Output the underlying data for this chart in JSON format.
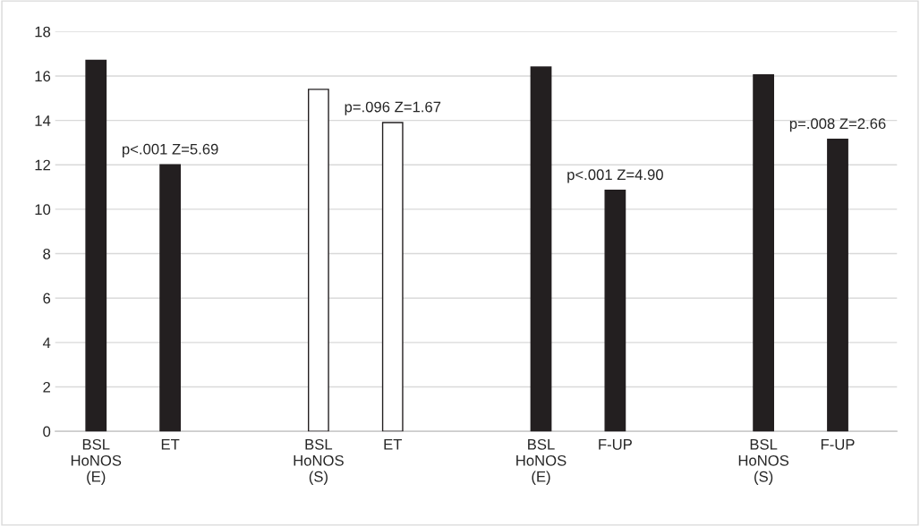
{
  "chart_data": {
    "type": "bar",
    "categories": [
      "BSL\nHoNOS\n(E)",
      "ET",
      null,
      "BSL\nHoNOS\n(S)",
      "ET",
      null,
      "BSL\nHoNOS\n(E)",
      "F-UP",
      null,
      "BSL\nHoNOS\n(S)",
      "F-UP"
    ],
    "values": [
      16.7,
      12.0,
      null,
      15.4,
      13.9,
      null,
      16.4,
      10.85,
      null,
      16.05,
      13.15
    ],
    "colors": [
      "#231f20",
      "#231f20",
      null,
      "#ffffff",
      "#ffffff",
      null,
      "#231f20",
      "#231f20",
      null,
      "#231f20",
      "#231f20"
    ],
    "value_labels": [
      null,
      "p<.001 Z=5.69",
      null,
      null,
      "p=.096 Z=1.67",
      null,
      null,
      "p<.001 Z=4.90",
      null,
      null,
      "p=.008 Z=2.66"
    ],
    "ylim": [
      0,
      18
    ],
    "yticks": [
      0,
      2,
      4,
      6,
      8,
      10,
      12,
      14,
      16,
      18
    ],
    "grid": "y"
  }
}
